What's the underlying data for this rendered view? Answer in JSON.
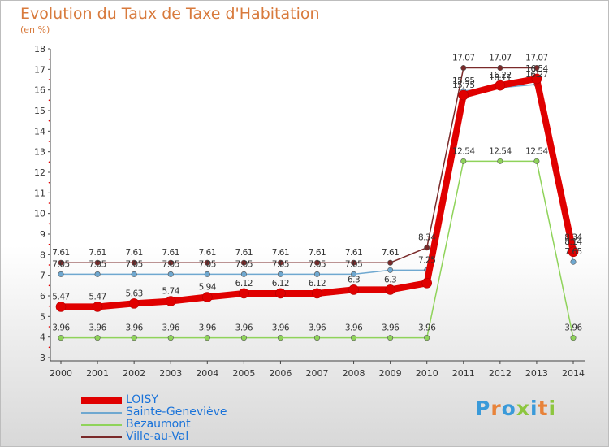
{
  "header": {
    "title": "Evolution du Taux de Taxe d'Habitation",
    "subtitle": "(en %)"
  },
  "logo": {
    "text": "Proxiti",
    "colors": [
      "#3a9ad9",
      "#e8833a",
      "#3a9ad9",
      "#8dc63f",
      "#3a9ad9",
      "#e8833a",
      "#8dc63f"
    ]
  },
  "chart_data": {
    "type": "line",
    "x": [
      "2000",
      "2001",
      "2002",
      "2003",
      "2004",
      "2005",
      "2006",
      "2007",
      "2008",
      "2009",
      "2010",
      "2011",
      "2012",
      "2013",
      "2014"
    ],
    "ylim": [
      3,
      18
    ],
    "yticks": [
      "3",
      "4",
      "5",
      "6",
      "7",
      "8",
      "9",
      "10",
      "11",
      "12",
      "13",
      "14",
      "15",
      "16",
      "17",
      "18"
    ],
    "grid": false,
    "legend": "bottom-left",
    "series": [
      {
        "name": "LOISY",
        "color": "#e00000",
        "labels": [
          "5.47",
          "5.47",
          "5.63",
          "5.74",
          "5.94",
          "6.12",
          "6.12",
          "6.12",
          "6.3",
          "6.3",
          "",
          "15.75",
          "16.22",
          "16.54",
          "8.14"
        ],
        "values": [
          5.47,
          5.47,
          5.63,
          5.74,
          5.94,
          6.12,
          6.12,
          6.12,
          6.3,
          6.3,
          6.62,
          15.75,
          16.22,
          16.54,
          8.14
        ]
      },
      {
        "name": "Sainte-Geneviève",
        "color": "#6fa8d0",
        "labels": [
          "7.05",
          "7.05",
          "7.05",
          "7.05",
          "7.05",
          "7.05",
          "7.05",
          "7.05",
          "7.05",
          "",
          "7.25",
          "15.95",
          "16.11",
          "16.27",
          "7.65"
        ],
        "values": [
          7.05,
          7.05,
          7.05,
          7.05,
          7.05,
          7.05,
          7.05,
          7.05,
          7.05,
          7.25,
          7.25,
          15.95,
          16.11,
          16.27,
          7.65
        ]
      },
      {
        "name": "Bezaumont",
        "color": "#8fd35a",
        "labels": [
          "3.96",
          "3.96",
          "3.96",
          "3.96",
          "3.96",
          "3.96",
          "3.96",
          "3.96",
          "3.96",
          "3.96",
          "3.96",
          "12.54",
          "12.54",
          "12.54",
          "3.96"
        ],
        "values": [
          3.96,
          3.96,
          3.96,
          3.96,
          3.96,
          3.96,
          3.96,
          3.96,
          3.96,
          3.96,
          3.96,
          12.54,
          12.54,
          12.54,
          3.96
        ]
      },
      {
        "name": "Ville-au-Val",
        "color": "#7a2a2a",
        "labels": [
          "7.61",
          "7.61",
          "7.61",
          "7.61",
          "7.61",
          "7.61",
          "7.61",
          "7.61",
          "7.61",
          "7.61",
          "8.34",
          "17.07",
          "17.07",
          "17.07",
          "8.34"
        ],
        "values": [
          7.61,
          7.61,
          7.61,
          7.61,
          7.61,
          7.61,
          7.61,
          7.61,
          7.61,
          7.61,
          8.34,
          17.07,
          17.07,
          17.07,
          8.34
        ]
      }
    ]
  }
}
